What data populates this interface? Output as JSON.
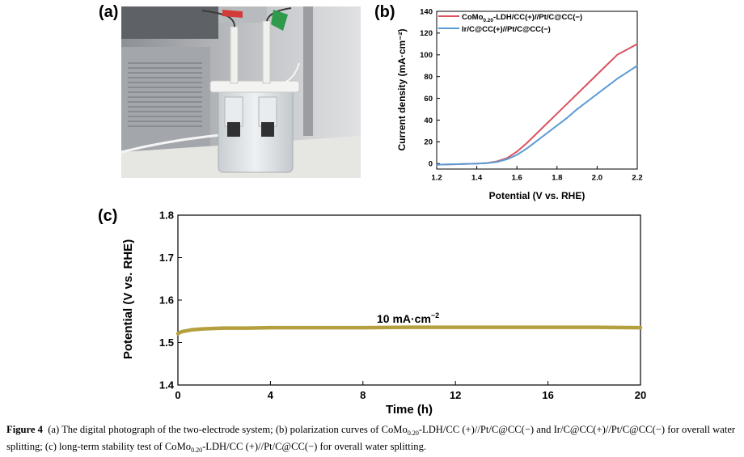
{
  "panels": {
    "a": "(a)",
    "b": "(b)",
    "c": "(c)"
  },
  "chart_data": [
    {
      "type": "line",
      "panel": "(b)",
      "xlabel": "Potential (V vs. RHE)",
      "ylabel": "Current density (mA·cm⁻²)",
      "xlim": [
        1.2,
        2.2
      ],
      "ylim": [
        -5,
        140
      ],
      "xticks": [
        "1.2",
        "1.4",
        "1.6",
        "1.8",
        "2.0",
        "2.2"
      ],
      "yticks": [
        "0",
        "20",
        "40",
        "60",
        "80",
        "100",
        "120",
        "140"
      ],
      "legend_position": "top-left",
      "series": [
        {
          "name": "CoMo0.20-LDH/CC(+)//Pt/C@CC(−)",
          "legend_main": "CoMo",
          "legend_sub": "0.20",
          "legend_rest": "-LDH/CC(+)//Pt/C@CC(−)",
          "color": "#d9535f",
          "x": [
            1.2,
            1.3,
            1.4,
            1.45,
            1.5,
            1.55,
            1.6,
            1.65,
            1.7,
            1.75,
            1.8,
            1.85,
            1.9,
            1.95,
            2.0,
            2.05,
            2.1,
            2.15,
            2.2
          ],
          "y": [
            -1,
            -0.5,
            0,
            0.5,
            2,
            5,
            11,
            19,
            28,
            37,
            46,
            55,
            64,
            73,
            82,
            91,
            100,
            105,
            110
          ]
        },
        {
          "name": "Ir/C@CC(+)//Pt/C@CC(−)",
          "legend_main": "Ir/C@CC(+)//Pt/C@CC(−)",
          "legend_sub": "",
          "legend_rest": "",
          "color": "#5b9bd5",
          "x": [
            1.2,
            1.3,
            1.4,
            1.45,
            1.5,
            1.55,
            1.6,
            1.65,
            1.7,
            1.75,
            1.8,
            1.85,
            1.9,
            1.95,
            2.0,
            2.05,
            2.1,
            2.15,
            2.2
          ],
          "y": [
            -1,
            -0.5,
            0,
            0.5,
            1.5,
            4,
            8,
            14,
            21,
            28,
            35,
            42,
            50,
            57,
            64,
            71,
            78,
            84,
            90
          ]
        }
      ]
    },
    {
      "type": "line",
      "panel": "(c)",
      "xlabel": "Time (h)",
      "ylabel": "Potential (V vs. RHE)",
      "xlim": [
        0,
        20
      ],
      "ylim": [
        1.4,
        1.8
      ],
      "xticks": [
        "0",
        "4",
        "8",
        "12",
        "16",
        "20"
      ],
      "yticks": [
        "1.4",
        "1.5",
        "1.6",
        "1.7",
        "1.8"
      ],
      "annotation": "10 mA·cm⁻²",
      "annotation_main": "10 mA·cm",
      "annotation_sup": "−2",
      "series": [
        {
          "name": "",
          "color": "#b5a040",
          "x": [
            0,
            0.1,
            0.2,
            0.4,
            0.6,
            0.8,
            1,
            1.5,
            2,
            3,
            4,
            6,
            8,
            10,
            12,
            14,
            16,
            18,
            20
          ],
          "y": [
            1.521,
            1.524,
            1.526,
            1.528,
            1.53,
            1.531,
            1.532,
            1.533,
            1.534,
            1.534,
            1.535,
            1.535,
            1.535,
            1.536,
            1.536,
            1.536,
            1.536,
            1.536,
            1.535
          ]
        }
      ]
    }
  ],
  "caption": {
    "label": "Figure 4",
    "p1": "(a) The digital photograph of the two-electrode system; (b) polarization curves of CoMo",
    "sub1": "0.20",
    "p2": "-LDH/CC (+)//Pt/C@CC(−) and Ir/C@CC(+)//Pt/C@CC(−) for overall water splitting; (c) long-term stability test of CoMo",
    "sub2": "0.20",
    "p3": "-LDH/CC (+)//Pt/C@CC(−) for overall water splitting."
  }
}
